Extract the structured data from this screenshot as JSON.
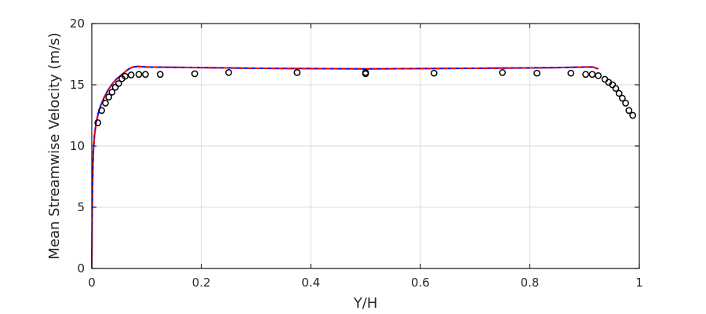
{
  "chart_data": {
    "type": "line",
    "title": "",
    "xlabel": "Y/H",
    "ylabel": "Mean Streamwise Velocity (m/s)",
    "xlim": [
      0,
      1
    ],
    "ylim": [
      0,
      20
    ],
    "xticks": [
      0,
      0.2,
      0.4,
      0.6,
      0.8,
      1
    ],
    "yticks": [
      0,
      5,
      10,
      15,
      20
    ],
    "xtick_labels": [
      "0",
      "0.2",
      "0.4",
      "0.6",
      "0.8",
      "1"
    ],
    "ytick_labels": [
      "0",
      "5",
      "10",
      "15",
      "20"
    ],
    "grid": true,
    "legend": false,
    "series": [
      {
        "name": "solid",
        "style": "solid",
        "color": "#0000ff",
        "x": [
          0.0,
          0.001,
          0.002,
          0.003,
          0.005,
          0.008,
          0.012,
          0.017,
          0.023,
          0.03,
          0.038,
          0.046,
          0.054,
          0.062,
          0.068,
          0.075,
          0.085,
          0.1,
          0.2,
          0.3,
          0.4,
          0.5,
          0.6,
          0.7,
          0.8,
          0.85,
          0.9,
          0.915,
          0.925
        ],
        "y": [
          0.0,
          5.5,
          8.3,
          9.6,
          10.9,
          11.9,
          12.7,
          13.4,
          14.0,
          14.6,
          15.1,
          15.5,
          15.8,
          16.1,
          16.3,
          16.45,
          16.5,
          16.45,
          16.4,
          16.35,
          16.32,
          16.3,
          16.32,
          16.35,
          16.38,
          16.4,
          16.45,
          16.45,
          16.3
        ]
      },
      {
        "name": "dashed",
        "style": "dashed",
        "color": "#ff0000",
        "x": [
          0.0,
          0.001,
          0.002,
          0.003,
          0.005,
          0.008,
          0.012,
          0.017,
          0.023,
          0.03,
          0.038,
          0.046,
          0.054,
          0.062,
          0.068,
          0.075,
          0.085,
          0.1,
          0.2,
          0.3,
          0.4,
          0.5,
          0.6,
          0.7,
          0.8,
          0.85,
          0.9,
          0.915,
          0.925
        ],
        "y": [
          0.0,
          5.5,
          8.3,
          9.6,
          10.9,
          11.9,
          12.7,
          13.4,
          14.0,
          14.6,
          15.1,
          15.5,
          15.8,
          16.1,
          16.3,
          16.45,
          16.5,
          16.45,
          16.4,
          16.35,
          16.32,
          16.3,
          16.32,
          16.35,
          16.38,
          16.4,
          16.45,
          16.45,
          16.3
        ]
      },
      {
        "name": "circles",
        "style": "markers",
        "color": "#000000",
        "x": [
          0.011,
          0.018,
          0.025,
          0.031,
          0.037,
          0.043,
          0.049,
          0.055,
          0.061,
          0.072,
          0.086,
          0.098,
          0.125,
          0.188,
          0.25,
          0.375,
          0.5,
          0.5,
          0.625,
          0.75,
          0.813,
          0.875,
          0.902,
          0.914,
          0.925,
          0.937,
          0.944,
          0.951,
          0.957,
          0.963,
          0.969,
          0.975,
          0.981,
          0.988
        ],
        "y": [
          11.9,
          12.9,
          13.5,
          14.0,
          14.4,
          14.8,
          15.1,
          15.5,
          15.7,
          15.8,
          15.85,
          15.85,
          15.85,
          15.9,
          16.0,
          16.0,
          16.0,
          15.9,
          15.95,
          16.0,
          15.95,
          15.95,
          15.85,
          15.85,
          15.75,
          15.45,
          15.2,
          15.0,
          14.7,
          14.3,
          13.9,
          13.5,
          12.9,
          12.5
        ]
      }
    ]
  }
}
